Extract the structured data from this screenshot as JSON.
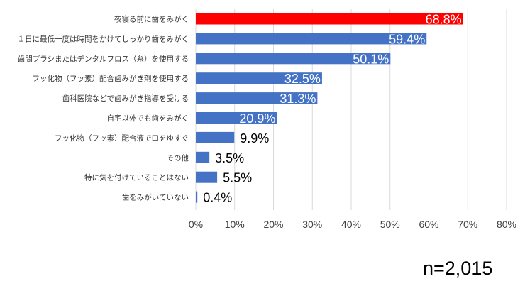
{
  "chart_data": {
    "type": "bar",
    "orientation": "horizontal",
    "categories": [
      "夜寝る前に歯をみがく",
      "１日に最低一度は時間をかけてしっかり歯をみがく",
      "歯間ブラシまたはデンタルフロス（糸）を使用する",
      "フッ化物（フッ素）配合歯みがき剤を使用する",
      "歯科医院などで歯みがき指導を受ける",
      "自宅以外でも歯をみがく",
      "フッ化物（フッ素）配合液で口をゆすぐ",
      "その他",
      "特に気を付けていることはない",
      "歯をみがいていない"
    ],
    "values": [
      68.8,
      59.4,
      50.1,
      32.5,
      31.3,
      20.9,
      9.9,
      3.5,
      5.5,
      0.4
    ],
    "value_labels": [
      "68.8%",
      "59.4%",
      "50.1%",
      "32.5%",
      "31.3%",
      "20.9%",
      "9.9%",
      "3.5%",
      "5.5%",
      "0.4%"
    ],
    "highlight_index": 0,
    "xlim": [
      0,
      80
    ],
    "xticks": [
      0,
      10,
      20,
      30,
      40,
      50,
      60,
      70,
      80
    ],
    "xtick_labels": [
      "0%",
      "10%",
      "20%",
      "30%",
      "40%",
      "50%",
      "60%",
      "70%",
      "80%"
    ],
    "grid": true,
    "legend": "none",
    "colors": {
      "bar": "#4472c4",
      "highlight": "#ff0000",
      "grid": "#d9d9d9"
    },
    "title": "",
    "xlabel": "",
    "ylabel": ""
  },
  "annotation": {
    "sample_size": "n=2,015"
  }
}
